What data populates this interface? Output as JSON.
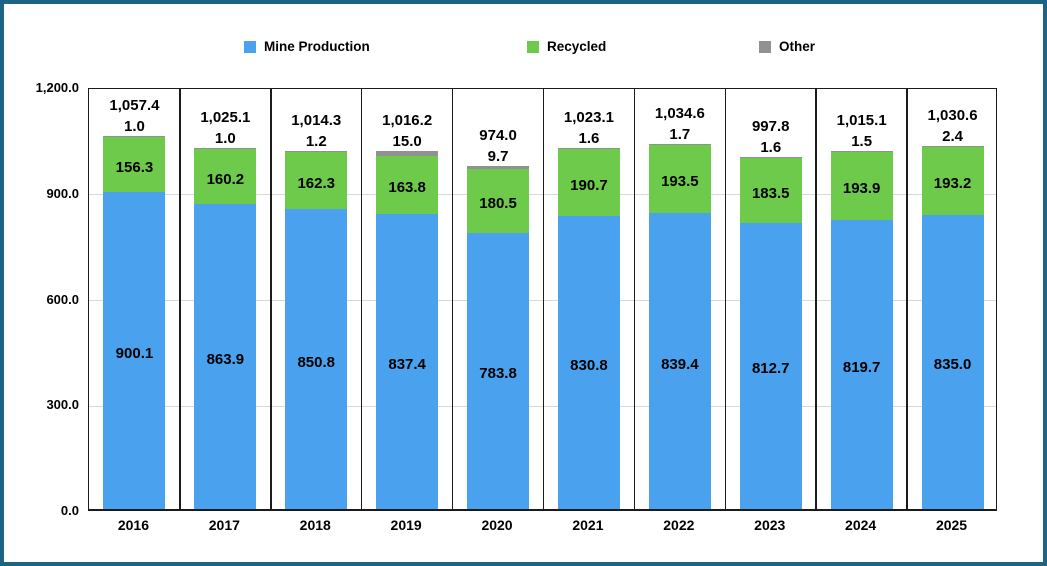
{
  "colors": {
    "frame_border": "#1d6484",
    "plot_border": "#1b1b1b",
    "gridline": "#d8d8d8",
    "background": "#ffffff",
    "text": "#000000"
  },
  "chart_data": {
    "type": "bar",
    "stacked": true,
    "title": "",
    "xlabel": "",
    "ylabel": "",
    "legend_position": "top",
    "grid": true,
    "categories": [
      "2016",
      "2017",
      "2018",
      "2019",
      "2020",
      "2021",
      "2022",
      "2023",
      "2024",
      "2025"
    ],
    "series": [
      {
        "name": "Mine Production",
        "color": "#4aa2ee",
        "values": [
          900.1,
          863.9,
          850.8,
          837.4,
          783.8,
          830.8,
          839.4,
          812.7,
          819.7,
          835.0
        ]
      },
      {
        "name": "Recycled",
        "color": "#6dca4b",
        "values": [
          156.3,
          160.2,
          162.3,
          163.8,
          180.5,
          190.7,
          193.5,
          183.5,
          193.9,
          193.2
        ]
      },
      {
        "name": "Other",
        "color": "#919191",
        "values": [
          1.0,
          1.0,
          1.2,
          15.0,
          9.7,
          1.6,
          1.7,
          1.6,
          1.5,
          2.4
        ]
      }
    ],
    "totals": [
      1057.4,
      1025.1,
      1014.3,
      1016.2,
      974.0,
      1023.1,
      1034.6,
      997.8,
      1015.1,
      1030.6
    ],
    "y_ticks": [
      0,
      300,
      600,
      900,
      1200
    ],
    "ylim": [
      0,
      1200
    ]
  }
}
